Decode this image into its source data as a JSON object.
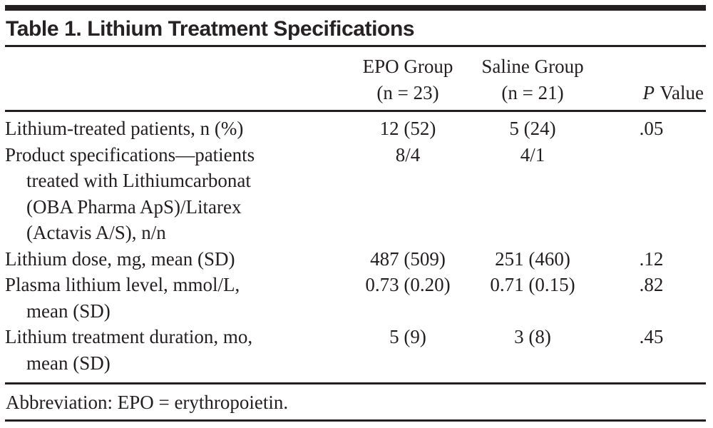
{
  "title": "Table 1. Lithium Treatment Specifications",
  "header": {
    "epo": {
      "name": "EPO Group",
      "n": "(n = 23)"
    },
    "saline": {
      "name": "Saline Group",
      "n": "(n = 21)"
    },
    "pvalue": {
      "italic": "P",
      "rest": "Value"
    }
  },
  "rows": [
    {
      "label": "Lithium-treated patients, n (%)",
      "epo": "12 (52)",
      "saline": "5 (24)",
      "p": ".05"
    },
    {
      "label": "Product specifications—patients\ntreated with Lithiumcarbonat\n(OBA Pharma ApS)/Litarex\n(Actavis A/S), n/n",
      "epo": "8/4",
      "saline": "4/1",
      "p": ""
    },
    {
      "label": "Lithium dose, mg, mean (SD)",
      "epo": "487 (509)",
      "saline": "251 (460)",
      "p": ".12"
    },
    {
      "label": "Plasma lithium level, mmol/L,\nmean (SD)",
      "epo": "0.73 (0.20)",
      "saline": "0.71 (0.15)",
      "p": ".82"
    },
    {
      "label": "Lithium treatment duration, mo,\nmean (SD)",
      "epo": "5 (9)",
      "saline": "3 (8)",
      "p": ".45"
    }
  ],
  "footnote": "Abbreviation: EPO = erythropoietin.",
  "colors": {
    "text": "#231f20",
    "rule": "#241f20",
    "background": "#ffffff"
  }
}
